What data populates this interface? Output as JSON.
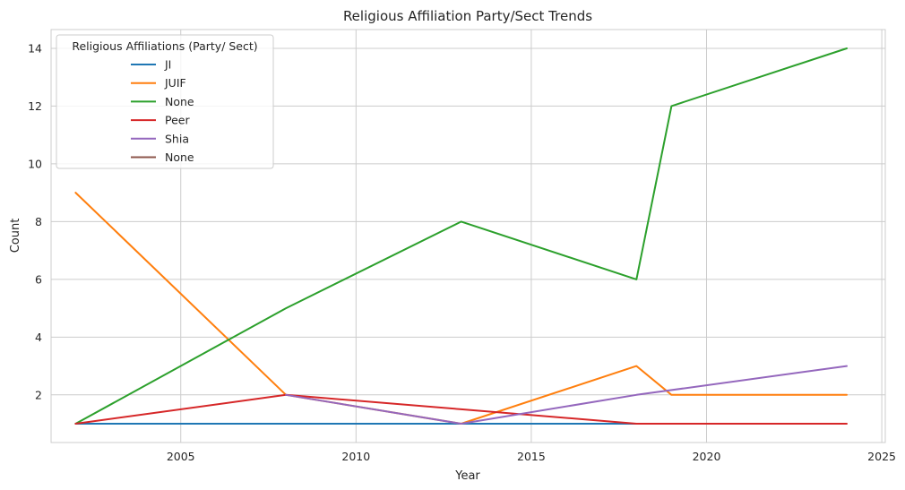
{
  "chart_data": {
    "type": "line",
    "title": "Religious Affiliation Party/Sect Trends",
    "xlabel": "Year",
    "ylabel": "Count",
    "xlim": [
      2001.3,
      2025.1
    ],
    "ylim": [
      0.35,
      14.65
    ],
    "xticks": [
      2005,
      2010,
      2015,
      2020,
      2025
    ],
    "yticks": [
      2,
      4,
      6,
      8,
      10,
      12,
      14
    ],
    "grid": true,
    "legend": {
      "title": "Religious Affiliations (Party/ Sect)",
      "placement": "top-left"
    },
    "series": [
      {
        "name": "JI",
        "color": "#1f77b4",
        "x": [
          2002,
          2008,
          2013,
          2018,
          2019
        ],
        "y": [
          1,
          1,
          1,
          1,
          1
        ]
      },
      {
        "name": "JUIF",
        "color": "#ff7f0e",
        "x": [
          2002,
          2008,
          2013,
          2018,
          2019,
          2024
        ],
        "y": [
          9,
          2,
          1,
          3,
          2,
          2
        ]
      },
      {
        "name": "None",
        "color": "#2ca02c",
        "x": [
          2002,
          2008,
          2013,
          2018,
          2019,
          2024
        ],
        "y": [
          1,
          5,
          8,
          6,
          12,
          14
        ]
      },
      {
        "name": "Peer",
        "color": "#d62728",
        "x": [
          2002,
          2008,
          2013,
          2018,
          2019,
          2024
        ],
        "y": [
          1,
          2,
          1.5,
          1,
          1,
          1
        ]
      },
      {
        "name": "Shia",
        "color": "#9467bd",
        "x": [
          2008,
          2013,
          2018,
          2024
        ],
        "y": [
          2,
          1,
          2,
          3
        ]
      },
      {
        "name": "None",
        "color": "#8c564b",
        "x": [],
        "y": []
      }
    ]
  }
}
